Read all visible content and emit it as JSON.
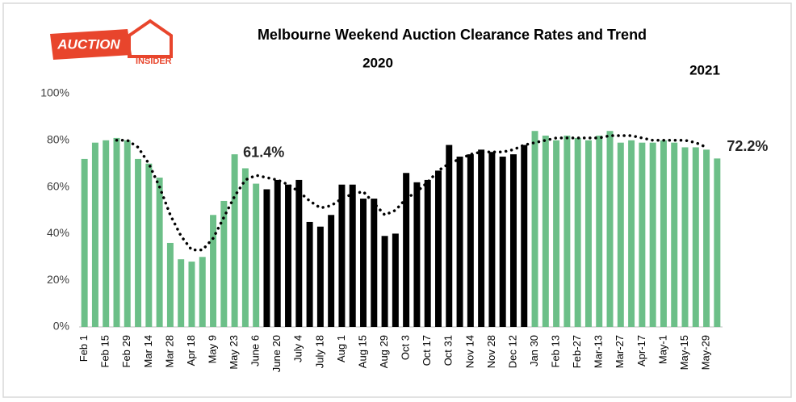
{
  "logo": {
    "main": "AUCTION",
    "sub": "INSIDER"
  },
  "chart_data": {
    "type": "bar",
    "title": "Melbourne Weekend Auction Clearance Rates and Trend",
    "annotations": [
      "2020",
      "2021"
    ],
    "categories": [
      "Feb 1",
      null,
      "Feb 15",
      null,
      "Feb 29",
      null,
      "Mar 14",
      null,
      "Mar 28",
      null,
      "Apr 18",
      null,
      "May 9",
      null,
      "May 23",
      null,
      "June 6",
      null,
      "June 20",
      null,
      "July 4",
      null,
      "July 18",
      null,
      "Aug 1",
      null,
      "Aug 15",
      null,
      "Aug 29",
      null,
      "Oct 3",
      null,
      "Oct 17",
      null,
      "Oct 31",
      null,
      "Nov 14",
      null,
      "Nov 28",
      null,
      "Dec 12",
      null,
      "Jan 30",
      null,
      "Feb 13",
      null,
      "Feb-27",
      null,
      "Mar-13",
      null,
      "Mar-27",
      null,
      "Apr-17",
      null,
      "May-1",
      null,
      "May-15",
      null,
      "May-29",
      null
    ],
    "values": [
      72,
      79,
      80,
      81,
      80,
      72,
      70,
      64,
      36,
      29,
      28,
      30,
      48,
      54,
      74,
      68,
      61.4,
      59,
      63,
      61,
      63,
      45,
      43,
      48,
      61,
      61,
      55,
      55,
      39,
      40,
      66,
      62,
      63,
      67,
      78,
      73,
      74,
      76,
      75,
      73,
      74,
      78,
      84,
      82,
      80,
      82,
      81,
      80,
      82,
      84,
      79,
      80,
      79,
      79,
      80,
      79,
      77,
      77,
      76,
      72.2
    ],
    "value_labels": [
      null,
      null,
      null,
      null,
      null,
      null,
      null,
      null,
      null,
      null,
      null,
      null,
      null,
      null,
      null,
      null,
      "61.4%",
      null,
      null,
      null,
      null,
      null,
      null,
      null,
      null,
      null,
      null,
      null,
      null,
      null,
      null,
      null,
      null,
      null,
      null,
      null,
      null,
      null,
      null,
      null,
      null,
      null,
      null,
      null,
      null,
      null,
      null,
      null,
      null,
      null,
      null,
      null,
      null,
      null,
      null,
      null,
      null,
      null,
      null,
      "72.2%"
    ],
    "colors": [
      "#6cbf88",
      "#6cbf88",
      "#6cbf88",
      "#6cbf88",
      "#6cbf88",
      "#6cbf88",
      "#6cbf88",
      "#6cbf88",
      "#6cbf88",
      "#6cbf88",
      "#6cbf88",
      "#6cbf88",
      "#6cbf88",
      "#6cbf88",
      "#6cbf88",
      "#6cbf88",
      "#6cbf88",
      "#000000",
      "#000000",
      "#000000",
      "#000000",
      "#000000",
      "#000000",
      "#000000",
      "#000000",
      "#000000",
      "#000000",
      "#000000",
      "#000000",
      "#000000",
      "#000000",
      "#000000",
      "#000000",
      "#000000",
      "#000000",
      "#000000",
      "#000000",
      "#000000",
      "#000000",
      "#000000",
      "#000000",
      "#000000",
      "#6cbf88",
      "#6cbf88",
      "#6cbf88",
      "#6cbf88",
      "#6cbf88",
      "#6cbf88",
      "#6cbf88",
      "#6cbf88",
      "#6cbf88",
      "#6cbf88",
      "#6cbf88",
      "#6cbf88",
      "#6cbf88",
      "#6cbf88",
      "#6cbf88",
      "#6cbf88",
      "#6cbf88",
      "#6cbf88"
    ],
    "trend": [
      null,
      null,
      null,
      80,
      80,
      77,
      70,
      60,
      48,
      39,
      33,
      33,
      38,
      47,
      56,
      63,
      65,
      64,
      63,
      61,
      58,
      54,
      51,
      52,
      55,
      57,
      58,
      53,
      48,
      50,
      55,
      58,
      62,
      67,
      70,
      72,
      74,
      75,
      75,
      75,
      76,
      78,
      79,
      80,
      81,
      81,
      81,
      81,
      81,
      82,
      82,
      82,
      81,
      80,
      80,
      80,
      80,
      79,
      77,
      null
    ],
    "trend_color": "#000000",
    "ylim": [
      0,
      100
    ],
    "yticks": [
      {
        "value": 0,
        "label": "0%"
      },
      {
        "value": 20,
        "label": "20%"
      },
      {
        "value": 40,
        "label": "40%"
      },
      {
        "value": 60,
        "label": "60%"
      },
      {
        "value": 80,
        "label": "80%"
      },
      {
        "value": 100,
        "label": "100%"
      }
    ]
  }
}
